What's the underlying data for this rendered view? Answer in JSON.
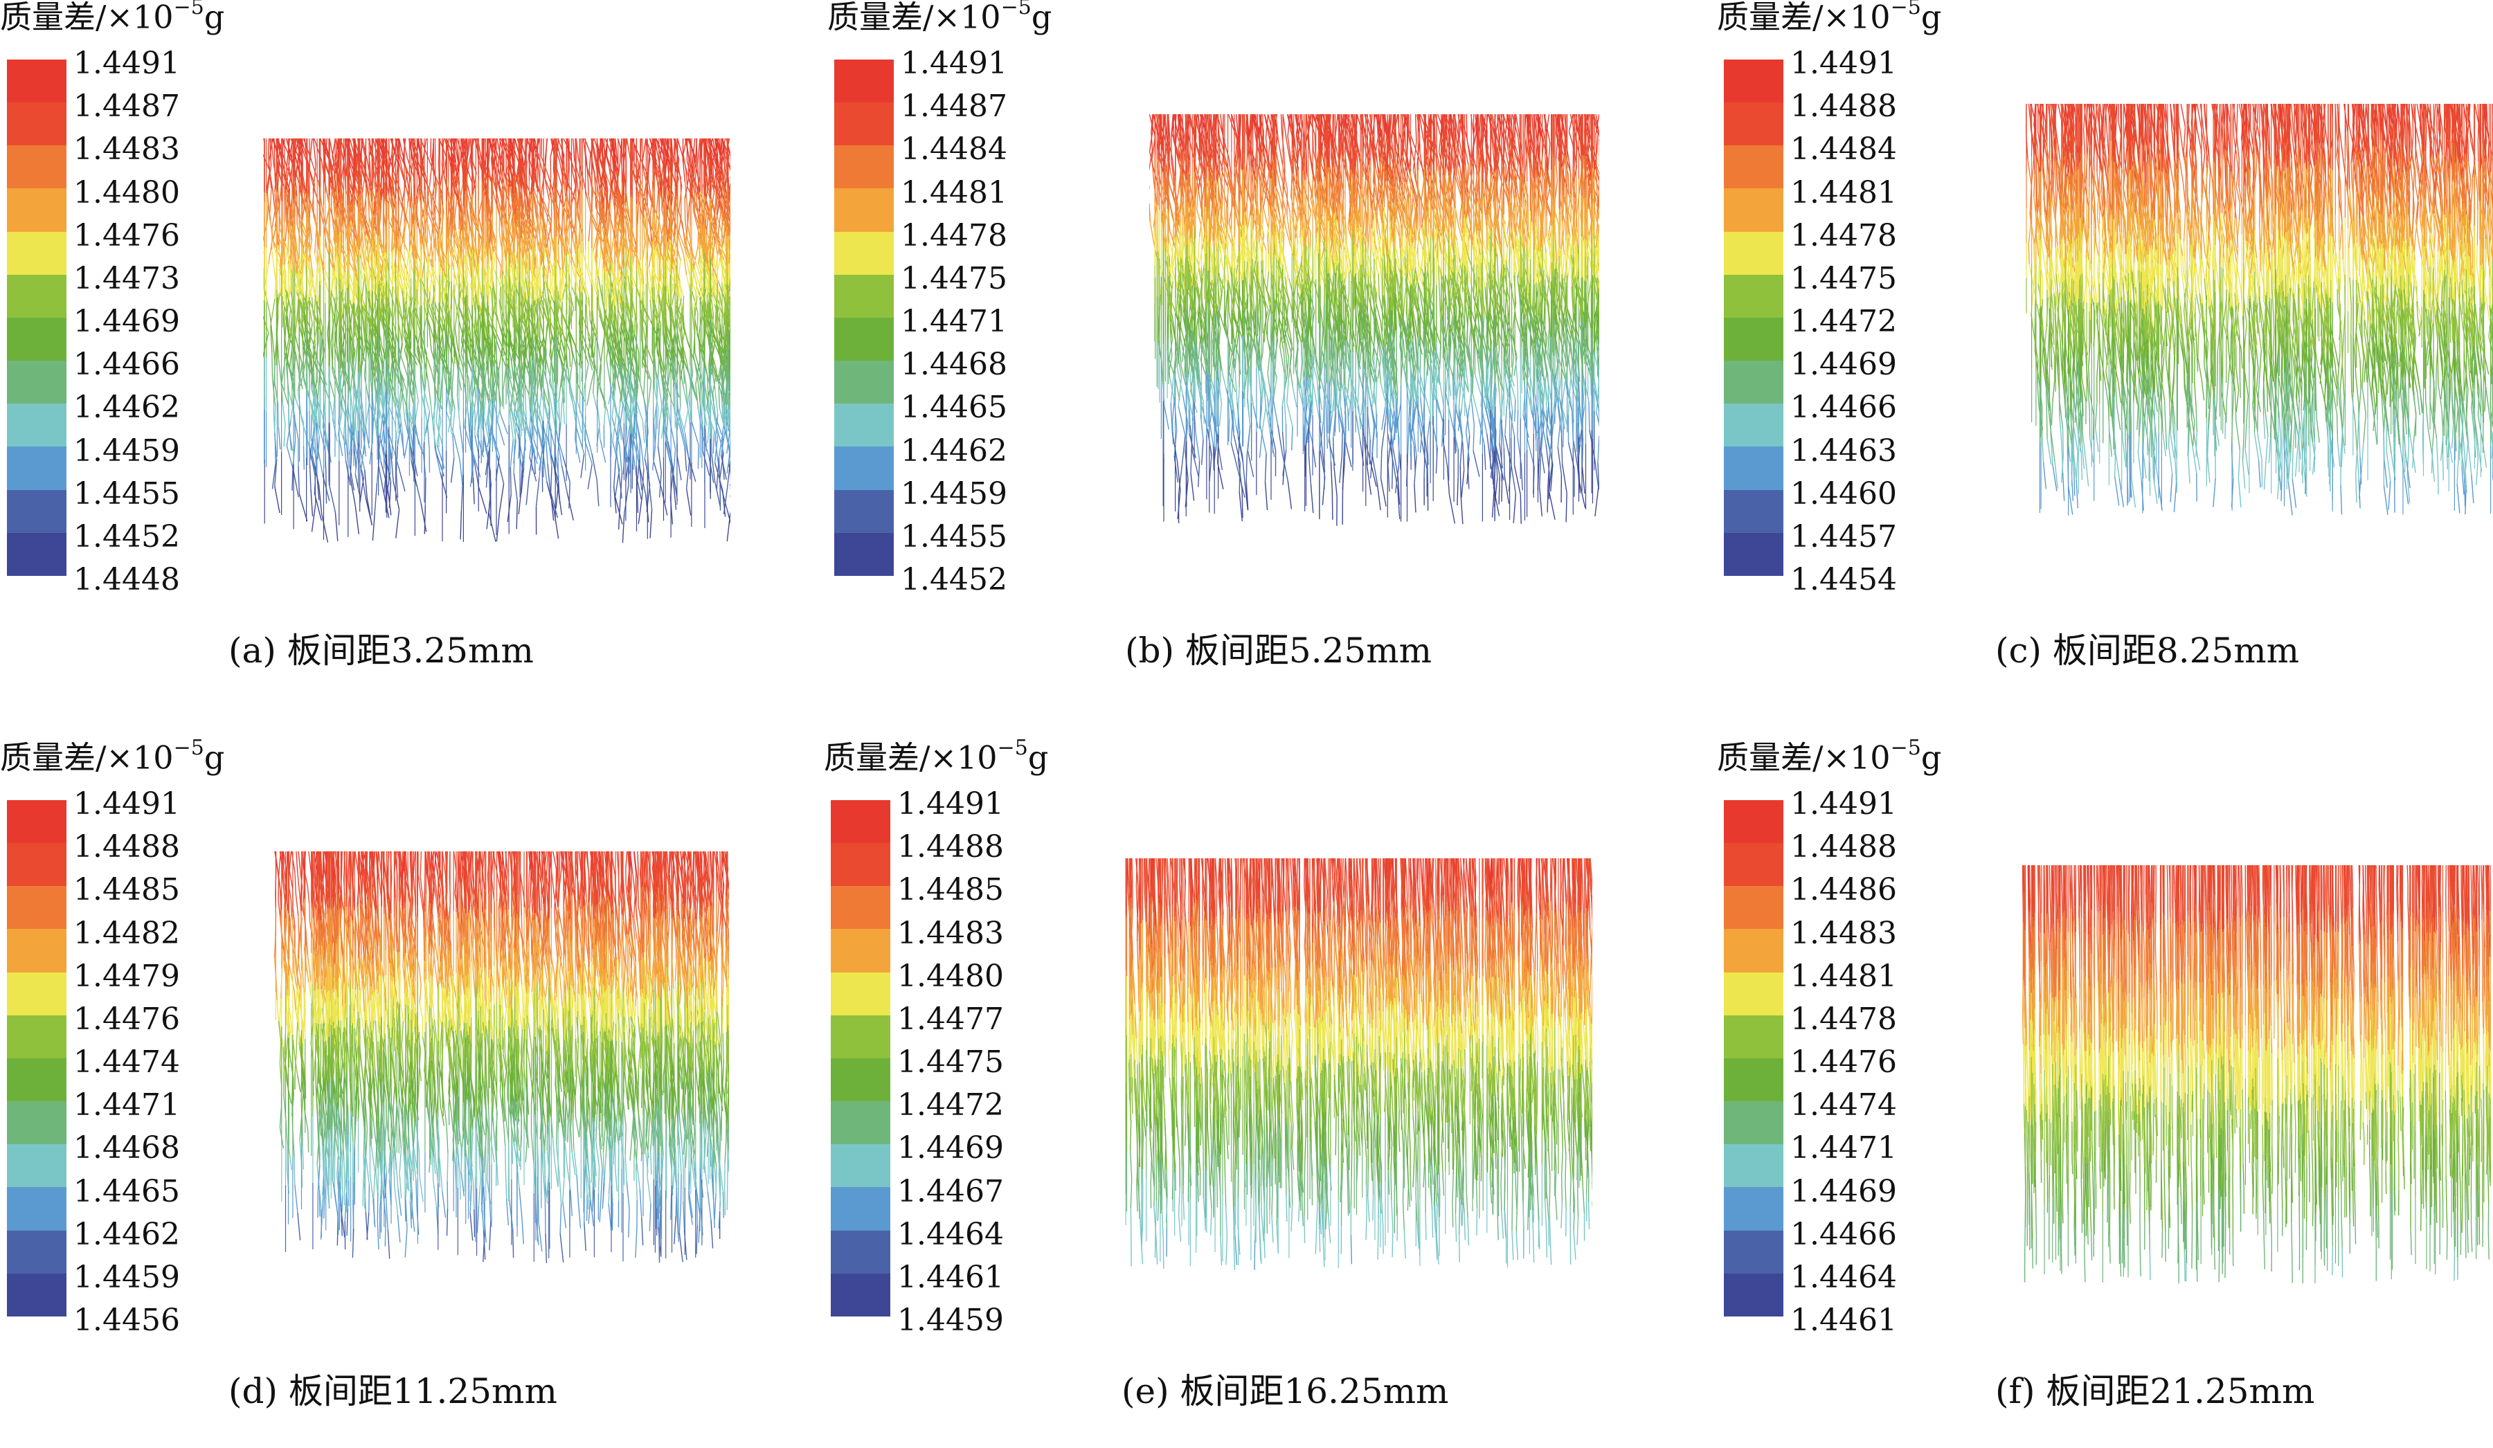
{
  "unit_label": {
    "base": "质量差/×10",
    "exp": "−5",
    "suffix": "g"
  },
  "colors": [
    "#e8392f",
    "#ea4a2f",
    "#ef7a35",
    "#f3a43a",
    "#eee64e",
    "#8fc13d",
    "#6db13a",
    "#6fb67a",
    "#7ac6c6",
    "#5b9ad0",
    "#4a63a8",
    "#3d4795"
  ],
  "chart_data": [
    {
      "type": "heatmap",
      "title": "(a) 板间距3.25mm",
      "colorbar_label": "质量差/×10−5g",
      "ticks": [
        "1.4491",
        "1.4487",
        "1.4483",
        "1.4480",
        "1.4476",
        "1.4473",
        "1.4469",
        "1.4466",
        "1.4462",
        "1.4459",
        "1.4455",
        "1.4452",
        "1.4448"
      ],
      "vmin": 1.4448,
      "vmax": 1.4491
    },
    {
      "type": "heatmap",
      "title": "(b) 板间距5.25mm",
      "colorbar_label": "质量差/×10−5g",
      "ticks": [
        "1.4491",
        "1.4487",
        "1.4484",
        "1.4481",
        "1.4478",
        "1.4475",
        "1.4471",
        "1.4468",
        "1.4465",
        "1.4462",
        "1.4459",
        "1.4455",
        "1.4452"
      ],
      "vmin": 1.4452,
      "vmax": 1.4491
    },
    {
      "type": "heatmap",
      "title": "(c) 板间距8.25mm",
      "colorbar_label": "质量差/×10−5g",
      "ticks": [
        "1.4491",
        "1.4488",
        "1.4484",
        "1.4481",
        "1.4478",
        "1.4475",
        "1.4472",
        "1.4469",
        "1.4466",
        "1.4463",
        "1.4460",
        "1.4457",
        "1.4454"
      ],
      "vmin": 1.4454,
      "vmax": 1.4491
    },
    {
      "type": "heatmap",
      "title": "(d) 板间距11.25mm",
      "colorbar_label": "质量差/×10−5g",
      "ticks": [
        "1.4491",
        "1.4488",
        "1.4485",
        "1.4482",
        "1.4479",
        "1.4476",
        "1.4474",
        "1.4471",
        "1.4468",
        "1.4465",
        "1.4462",
        "1.4459",
        "1.4456"
      ],
      "vmin": 1.4456,
      "vmax": 1.4491
    },
    {
      "type": "heatmap",
      "title": "(e) 板间距16.25mm",
      "colorbar_label": "质量差/×10−5g",
      "ticks": [
        "1.4491",
        "1.4488",
        "1.4485",
        "1.4483",
        "1.4480",
        "1.4477",
        "1.4475",
        "1.4472",
        "1.4469",
        "1.4467",
        "1.4464",
        "1.4461",
        "1.4459"
      ],
      "vmin": 1.4459,
      "vmax": 1.4491
    },
    {
      "type": "heatmap",
      "title": "(f) 板间距21.25mm",
      "colorbar_label": "质量差/×10−5g",
      "ticks": [
        "1.4491",
        "1.4488",
        "1.4486",
        "1.4483",
        "1.4481",
        "1.4478",
        "1.4476",
        "1.4474",
        "1.4471",
        "1.4469",
        "1.4466",
        "1.4464",
        "1.4461"
      ],
      "vmin": 1.4461,
      "vmax": 1.4491
    }
  ]
}
